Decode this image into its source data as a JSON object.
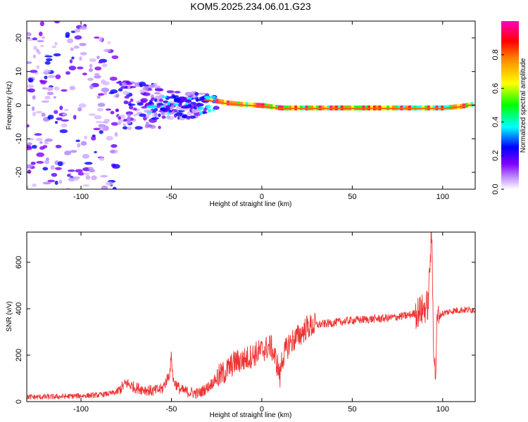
{
  "chart_data": [
    {
      "type": "heatmap",
      "title": "KOM5.2025.234.06.01.G23",
      "xlabel": "Height of straight line (km)",
      "ylabel": "Frequency (Hz)",
      "xlim": [
        -130,
        118
      ],
      "ylim": [
        -25,
        25
      ],
      "xticks": [
        -100,
        -50,
        0,
        50,
        100
      ],
      "yticks": [
        -20,
        -10,
        0,
        10,
        20
      ],
      "colorbar": {
        "label": "Normalized spectral amplitude",
        "range": [
          0,
          1
        ],
        "ticks": [
          "0.0",
          "0.2",
          "0.4",
          "0.6",
          "0.8"
        ],
        "tick_values": [
          0,
          0.2,
          0.4,
          0.6,
          0.8
        ],
        "colormap": "rainbow (white-violet-blue-cyan-green-yellow-red-magenta)"
      },
      "ridge": {
        "description": "dominant frequency line versus height",
        "x": [
          -30,
          -20,
          -10,
          0,
          10,
          20,
          40,
          60,
          80,
          90,
          95,
          100,
          110,
          115
        ],
        "y": [
          1.5,
          0.5,
          0,
          -0.3,
          -1,
          -1,
          -1,
          -1,
          -1,
          -1,
          -1,
          -1,
          -0.5,
          0
        ]
      }
    },
    {
      "type": "line",
      "title": "",
      "xlabel": "Height of straight line (km)",
      "ylabel": "SNR (v/v)",
      "xlim": [
        -130,
        118
      ],
      "ylim": [
        0,
        730
      ],
      "xticks": [
        -100,
        -50,
        0,
        50,
        100
      ],
      "yticks": [
        0,
        200,
        400,
        600
      ],
      "series": [
        {
          "name": "SNR",
          "color": "#ee3333",
          "x": [
            -130,
            -120,
            -110,
            -100,
            -90,
            -80,
            -75,
            -70,
            -60,
            -55,
            -51,
            -50,
            -49,
            -45,
            -40,
            -35,
            -30,
            -25,
            -20,
            -15,
            -10,
            -5,
            0,
            5,
            9,
            10,
            11,
            15,
            20,
            25,
            30,
            40,
            50,
            60,
            70,
            80,
            85,
            90,
            92,
            93,
            94,
            95,
            96,
            97,
            100,
            105,
            110,
            118
          ],
          "values": [
            20,
            20,
            22,
            25,
            28,
            40,
            80,
            60,
            45,
            55,
            120,
            200,
            90,
            50,
            40,
            35,
            60,
            100,
            130,
            170,
            180,
            200,
            220,
            240,
            150,
            100,
            180,
            250,
            280,
            320,
            330,
            340,
            350,
            355,
            360,
            370,
            380,
            400,
            420,
            600,
            720,
            250,
            100,
            360,
            380,
            390,
            395,
            395
          ]
        }
      ]
    }
  ]
}
